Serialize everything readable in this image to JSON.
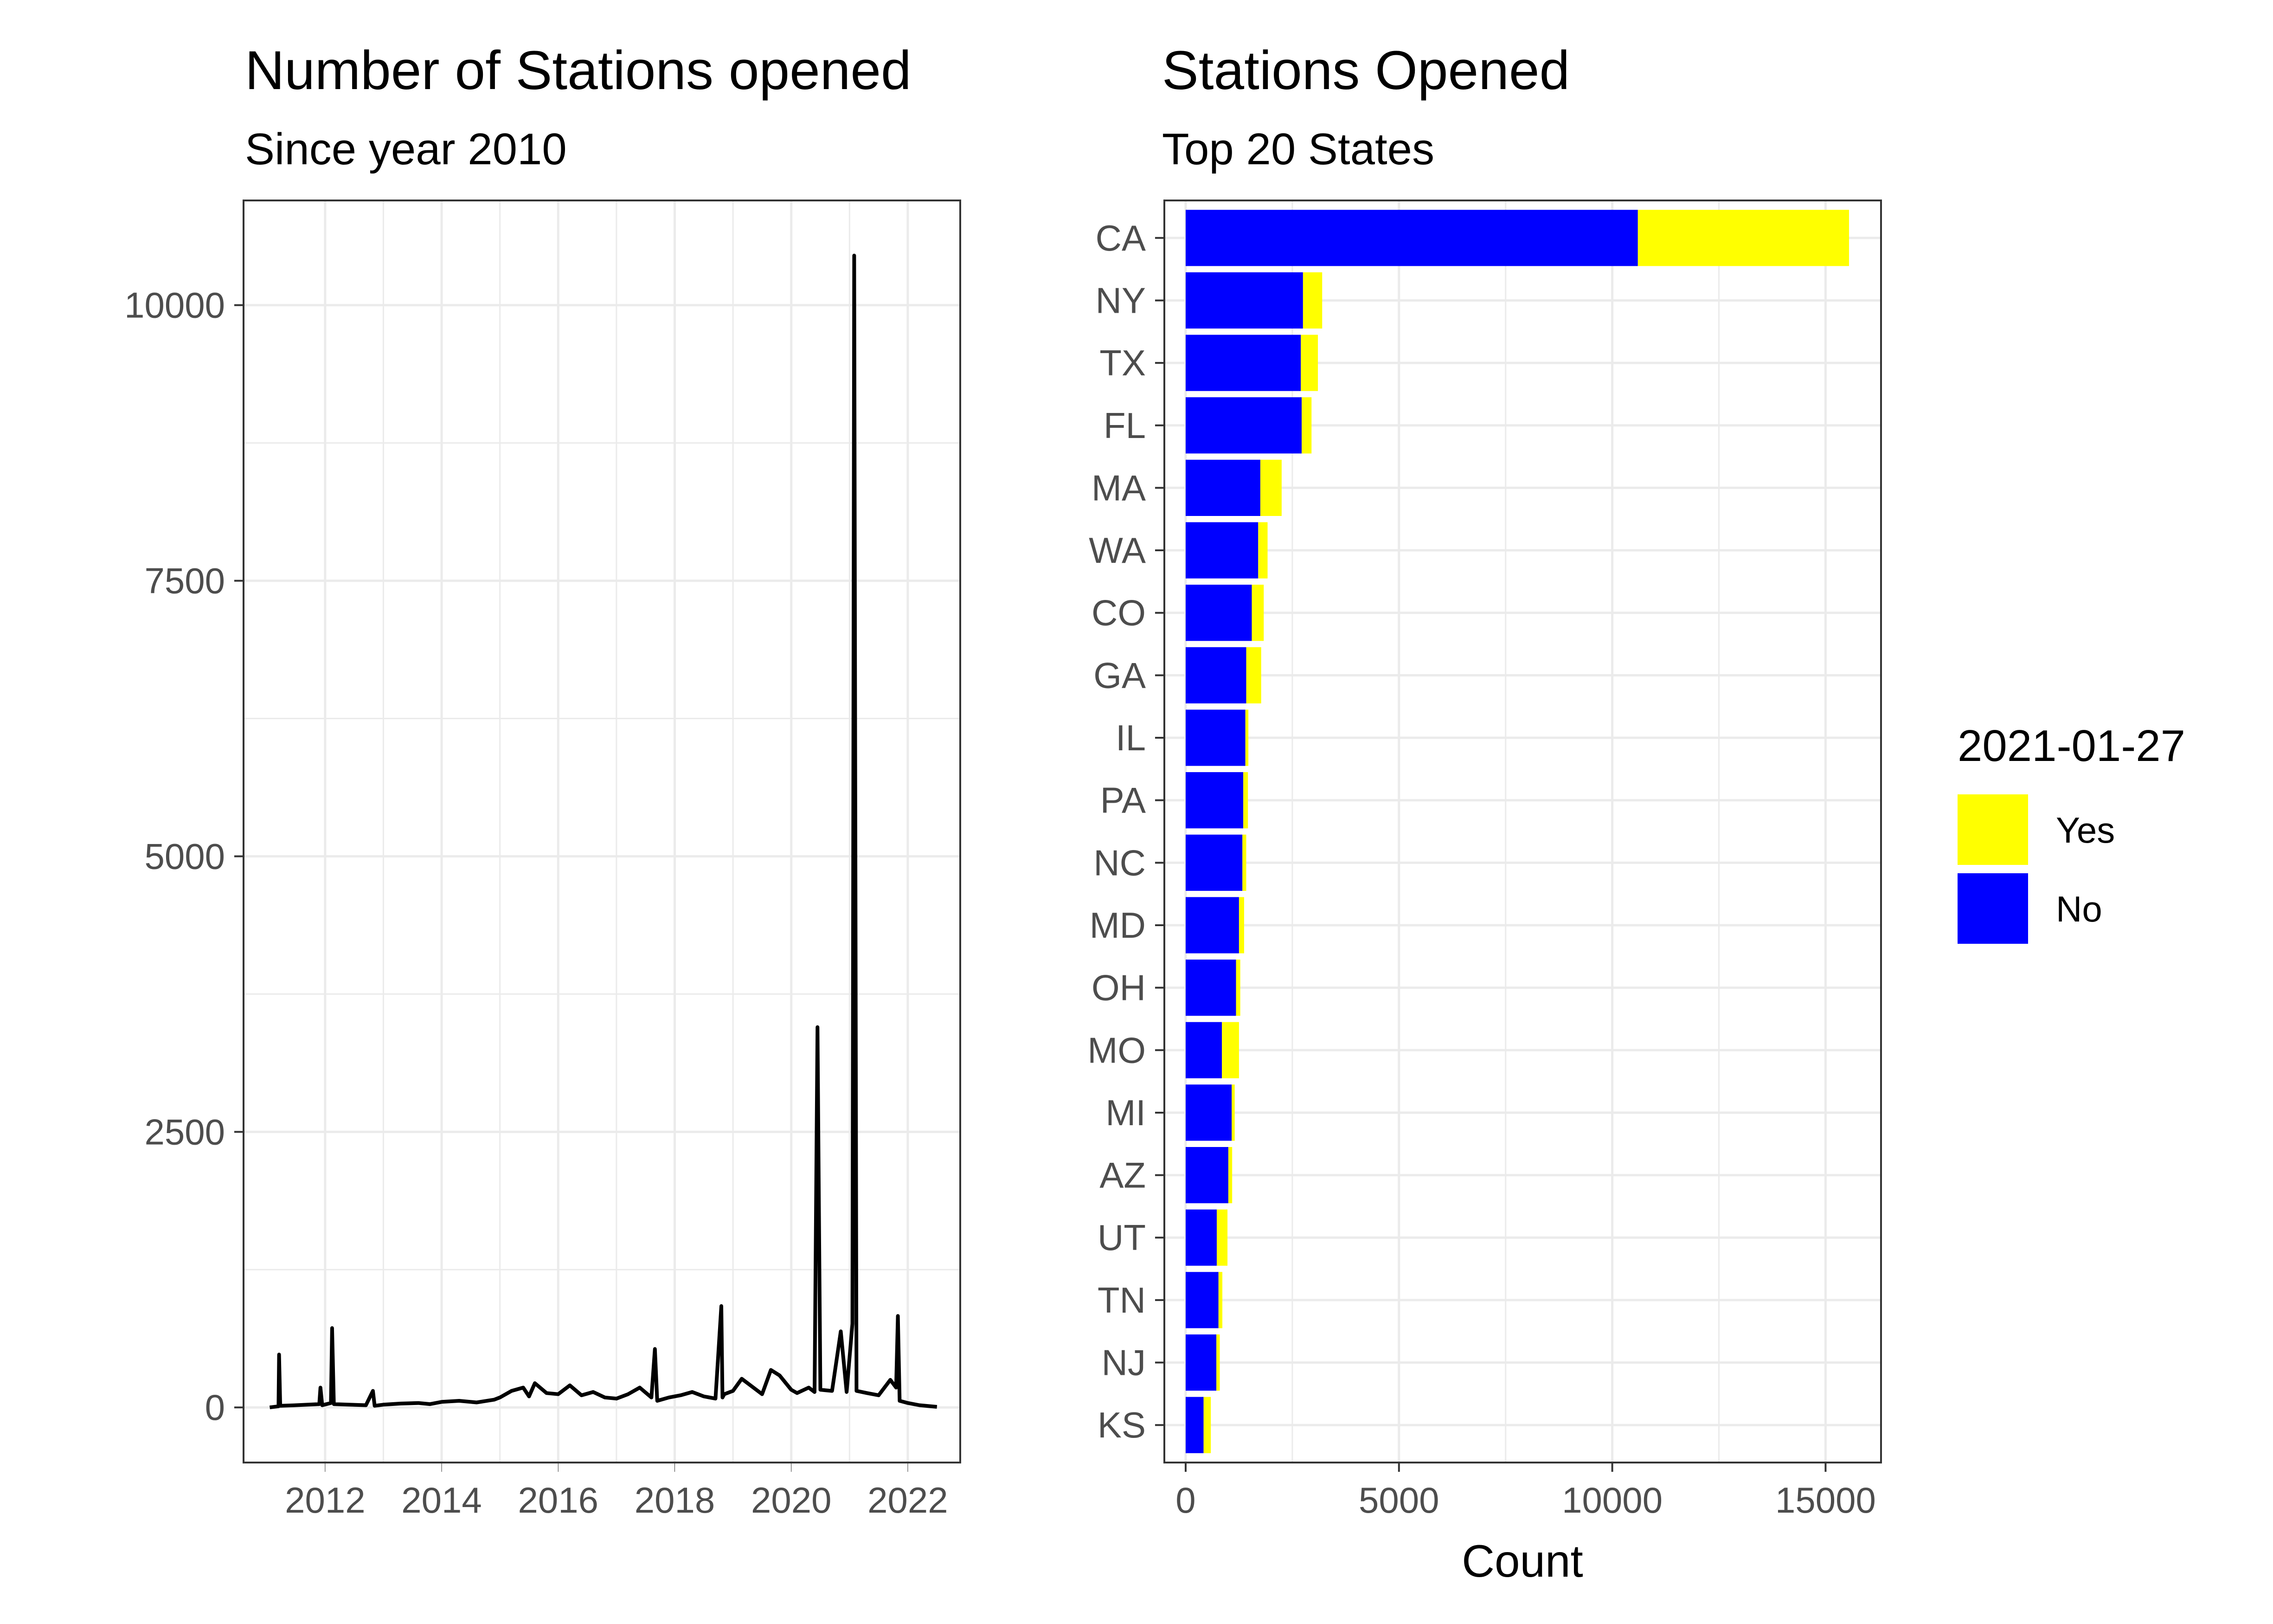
{
  "chart_data": [
    {
      "type": "line",
      "title": "Number of Stations opened",
      "subtitle": "Since year 2010",
      "xlabel": "",
      "ylabel": "",
      "xlim": [
        2010.6,
        2022.9
      ],
      "ylim": [
        -500,
        10950
      ],
      "x_ticks": [
        2012,
        2014,
        2016,
        2018,
        2020,
        2022
      ],
      "y_ticks": [
        0,
        2500,
        5000,
        7500,
        10000
      ],
      "grid": true,
      "color": "#000000",
      "series": [
        {
          "x": [
            2011.05,
            2011.2,
            2011.21,
            2011.23,
            2011.5,
            2011.9,
            2011.92,
            2011.95,
            2012.1,
            2012.12,
            2012.15,
            2012.4,
            2012.7,
            2012.82,
            2012.85,
            2013.0,
            2013.3,
            2013.6,
            2013.8,
            2014.0,
            2014.3,
            2014.6,
            2014.9,
            2015.0,
            2015.2,
            2015.4,
            2015.5,
            2015.6,
            2015.8,
            2016.0,
            2016.2,
            2016.4,
            2016.6,
            2016.8,
            2017.0,
            2017.2,
            2017.4,
            2017.6,
            2017.66,
            2017.7,
            2017.9,
            2018.1,
            2018.3,
            2018.5,
            2018.7,
            2018.8,
            2018.82,
            2018.85,
            2019.0,
            2019.15,
            2019.3,
            2019.5,
            2019.65,
            2019.8,
            2020.0,
            2020.1,
            2020.3,
            2020.4,
            2020.45,
            2020.5,
            2020.7,
            2020.85,
            2020.95,
            2021.05,
            2021.08,
            2021.12,
            2021.3,
            2021.5,
            2021.7,
            2021.8,
            2021.83,
            2021.86,
            2022.0,
            2022.2,
            2022.5
          ],
          "y": [
            0,
            10,
            480,
            15,
            20,
            30,
            180,
            20,
            40,
            720,
            30,
            25,
            20,
            150,
            15,
            25,
            35,
            40,
            30,
            50,
            60,
            45,
            70,
            90,
            150,
            180,
            100,
            220,
            130,
            120,
            200,
            110,
            140,
            90,
            80,
            120,
            180,
            90,
            530,
            60,
            90,
            110,
            140,
            100,
            80,
            920,
            90,
            120,
            150,
            260,
            200,
            120,
            340,
            290,
            160,
            130,
            180,
            140,
            3450,
            160,
            150,
            690,
            140,
            760,
            10450,
            150,
            130,
            110,
            250,
            180,
            830,
            60,
            40,
            20,
            5
          ]
        }
      ]
    },
    {
      "type": "bar",
      "orientation": "horizontal",
      "stacked": true,
      "title": "Stations Opened",
      "subtitle": "Top 20 States",
      "xlabel": "Count",
      "ylabel": "",
      "xlim": [
        -500,
        16300
      ],
      "x_ticks": [
        0,
        5000,
        10000,
        15000
      ],
      "grid": true,
      "categories": [
        "CA",
        "NY",
        "TX",
        "FL",
        "MA",
        "WA",
        "CO",
        "GA",
        "IL",
        "PA",
        "NC",
        "MD",
        "OH",
        "MO",
        "MI",
        "AZ",
        "UT",
        "TN",
        "NJ",
        "KS"
      ],
      "series": [
        {
          "name": "No",
          "color": "#0000FF",
          "values": [
            10600,
            2750,
            2700,
            2720,
            1750,
            1700,
            1550,
            1420,
            1400,
            1350,
            1330,
            1250,
            1180,
            850,
            1080,
            1000,
            730,
            770,
            720,
            420
          ]
        },
        {
          "name": "Yes",
          "color": "#FFFF00",
          "values": [
            4950,
            450,
            400,
            230,
            500,
            220,
            280,
            350,
            70,
            110,
            90,
            120,
            100,
            400,
            70,
            90,
            250,
            90,
            80,
            170
          ]
        }
      ],
      "legend": {
        "title": "2021-01-27",
        "position": "right",
        "entries": [
          {
            "label": "Yes",
            "color": "#FFFF00"
          },
          {
            "label": "No",
            "color": "#0000FF"
          }
        ]
      }
    }
  ]
}
